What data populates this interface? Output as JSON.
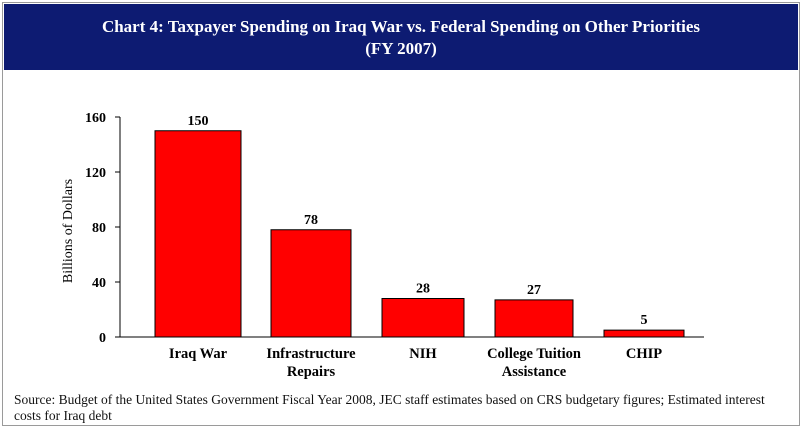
{
  "header": {
    "title_line1": "Chart 4: Taxpayer Spending on Iraq War  vs. Federal Spending on Other Priorities",
    "title_line2": "(FY 2007)"
  },
  "colors": {
    "header_bg": "#0d1b72",
    "bar_fill": "#ff0000",
    "bar_stroke": "#000000"
  },
  "chart_data": {
    "type": "bar",
    "title": "Chart 4: Taxpayer Spending on Iraq War  vs. Federal Spending on Other Priorities (FY 2007)",
    "categories": [
      [
        "Iraq War"
      ],
      [
        "Infrastructure",
        "Repairs"
      ],
      [
        "NIH"
      ],
      [
        "College Tuition",
        "Assistance"
      ],
      [
        "CHIP"
      ]
    ],
    "values": [
      150,
      78,
      28,
      27,
      5
    ],
    "data_labels": [
      "150",
      "78",
      "28",
      "27",
      "5"
    ],
    "ylabel": "Billions of Dollars",
    "xlabel": "",
    "ylim": [
      0,
      160
    ],
    "yticks": [
      0,
      40,
      80,
      120,
      160
    ],
    "grid": false,
    "legend": "none"
  },
  "source": "Source: Budget of the United States Government Fiscal Year 2008, JEC staff estimates based on CRS budgetary figures; Estimated interest costs for Iraq debt"
}
